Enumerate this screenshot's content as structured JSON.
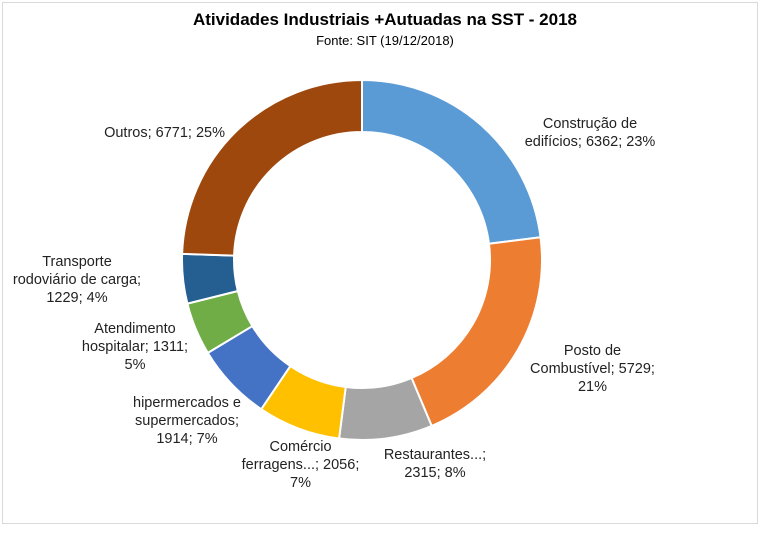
{
  "chart_data": {
    "type": "pie",
    "title": "Atividades Industriais +Autuadas na SST - 2018",
    "subtitle": "Fonte: SIT (19/12/2018)",
    "slices": [
      {
        "name": "Construção de edifícios",
        "value": 6362,
        "percent": "23%",
        "color": "#5b9bd5"
      },
      {
        "name": "Posto de Combustível",
        "value": 5729,
        "percent": "21%",
        "color": "#ed7d31"
      },
      {
        "name": "Restaurantes...",
        "value": 2315,
        "percent": "8%",
        "color": "#a5a5a5"
      },
      {
        "name": "Comércio ferragens...",
        "value": 2056,
        "percent": "7%",
        "color": "#ffc000"
      },
      {
        "name": "hipermercados e supermercados",
        "value": 1914,
        "percent": "7%",
        "color": "#4472c4"
      },
      {
        "name": "Atendimento hospitalar",
        "value": 1311,
        "percent": "5%",
        "color": "#70ad47"
      },
      {
        "name": "Transporte rodoviário de carga",
        "value": 1229,
        "percent": "4%",
        "color": "#255e91"
      },
      {
        "name": "Outros",
        "value": 6771,
        "percent": "25%",
        "color": "#9e480e"
      }
    ],
    "labels": [
      {
        "lines": [
          "Construção de",
          "edifícios; 6362; 23%"
        ]
      },
      {
        "lines": [
          "Posto de",
          "Combustível;  5729;",
          "21%"
        ]
      },
      {
        "lines": [
          "Restaurantes...;",
          "2315; 8%"
        ]
      },
      {
        "lines": [
          "Comércio",
          "ferragens...;  2056;",
          "7%"
        ]
      },
      {
        "lines": [
          "hipermercados e",
          "supermercados;",
          "1914; 7%"
        ]
      },
      {
        "lines": [
          "Atendimento",
          "hospitalar; 1311;",
          "5%"
        ]
      },
      {
        "lines": [
          "Transporte",
          "rodoviário de carga;",
          "1229; 4%"
        ]
      },
      {
        "lines": [
          "Outros;  6771; 25%"
        ]
      }
    ]
  }
}
